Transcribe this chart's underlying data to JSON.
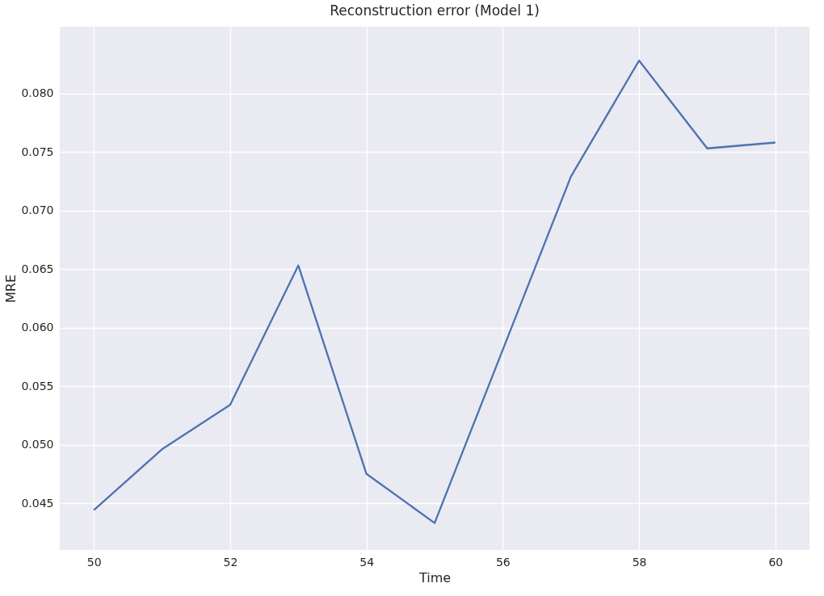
{
  "chart_data": {
    "type": "line",
    "title": "Reconstruction error (Model 1)",
    "xlabel": "Time",
    "ylabel": "MRE",
    "x": [
      50,
      51,
      52,
      53,
      54,
      55,
      56,
      57,
      58,
      59,
      60
    ],
    "series": [
      {
        "color": "#4c72b0",
        "values": [
          0.0444,
          0.0496,
          0.0534,
          0.0653,
          0.0475,
          0.0433,
          0.0581,
          0.0729,
          0.0828,
          0.0753,
          0.0758
        ]
      }
    ],
    "xlim": [
      49.5,
      60.5
    ],
    "ylim": [
      0.041,
      0.0857
    ],
    "xticks": [
      50,
      52,
      54,
      56,
      58,
      60
    ],
    "yticks": [
      {
        "value": 0.045,
        "label": "0.045"
      },
      {
        "value": 0.05,
        "label": "0.050"
      },
      {
        "value": 0.055,
        "label": "0.055"
      },
      {
        "value": 0.06,
        "label": "0.060"
      },
      {
        "value": 0.065,
        "label": "0.065"
      },
      {
        "value": 0.07,
        "label": "0.070"
      },
      {
        "value": 0.075,
        "label": "0.075"
      },
      {
        "value": 0.08,
        "label": "0.080"
      }
    ],
    "grid": true,
    "line_style": "solid"
  }
}
